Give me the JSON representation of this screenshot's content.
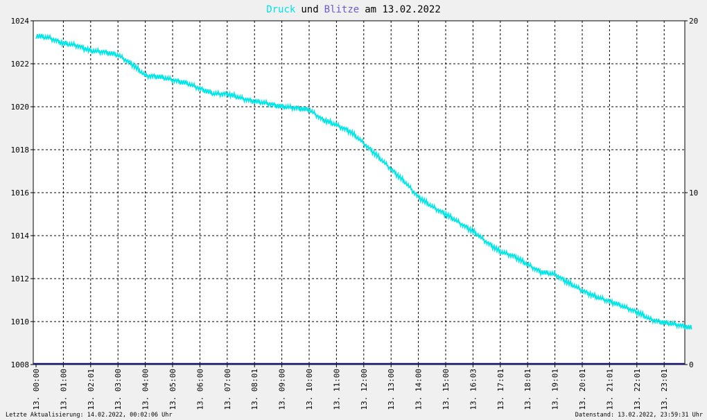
{
  "title": {
    "druck": "Druck",
    "und": "und",
    "blitze": "Blitze",
    "rest": "am 13.02.2022",
    "colors": {
      "druck": "#00e5e5",
      "blitze": "#6a5acd",
      "text": "#000000"
    }
  },
  "footer": {
    "left": "Letzte Aktualisierung: 14.02.2022, 00:02:06 Uhr",
    "right": "Datenstand: 13.02.2022, 23:59:31 Uhr"
  },
  "chart_data": {
    "type": "line",
    "title": "Druck und Blitze am 13.02.2022",
    "xlabel": "",
    "ylabel": "",
    "ylim": [
      1008,
      1024
    ],
    "y2lim": [
      0,
      20
    ],
    "y_ticks": [
      "1008",
      "1010",
      "1012",
      "1014",
      "1016",
      "1018",
      "1020",
      "1022",
      "1024"
    ],
    "y2_ticks": [
      "0",
      "10",
      "20"
    ],
    "x_ticks": [
      "13. 00:00",
      "13. 01:00",
      "13. 02:01",
      "13. 03:00",
      "13. 04:00",
      "13. 05:00",
      "13. 06:00",
      "13. 07:00",
      "13. 08:01",
      "13. 09:00",
      "13. 10:00",
      "13. 11:00",
      "13. 12:00",
      "13. 13:00",
      "13. 14:00",
      "13. 15:00",
      "13. 16:03",
      "13. 17:01",
      "13. 18:01",
      "13. 19:01",
      "13. 20:01",
      "13. 21:01",
      "13. 22:01",
      "13. 23:01"
    ],
    "grid": true,
    "series": [
      {
        "name": "Druck",
        "color": "#00e5e5",
        "axis": "left",
        "x_hours": [
          0,
          0.5,
          1,
          1.5,
          2,
          2.5,
          3,
          3.5,
          4,
          4.5,
          5,
          5.5,
          6,
          6.5,
          7,
          7.5,
          8,
          8.5,
          9,
          9.5,
          10,
          10.5,
          11,
          11.5,
          12,
          12.5,
          13,
          13.5,
          14,
          14.5,
          15,
          15.5,
          16,
          16.5,
          17,
          17.5,
          18,
          18.5,
          19,
          19.5,
          20,
          20.5,
          21,
          21.5,
          22,
          22.5,
          23,
          23.5,
          24
        ],
        "values": [
          1023.3,
          1023.2,
          1022.95,
          1022.85,
          1022.6,
          1022.55,
          1022.4,
          1022.0,
          1021.45,
          1021.4,
          1021.25,
          1021.1,
          1020.85,
          1020.6,
          1020.6,
          1020.4,
          1020.25,
          1020.15,
          1020.0,
          1019.95,
          1019.85,
          1019.4,
          1019.15,
          1018.85,
          1018.3,
          1017.7,
          1017.1,
          1016.5,
          1015.8,
          1015.35,
          1015.0,
          1014.6,
          1014.2,
          1013.7,
          1013.25,
          1013.05,
          1012.65,
          1012.3,
          1012.2,
          1011.8,
          1011.45,
          1011.15,
          1010.95,
          1010.7,
          1010.45,
          1010.1,
          1009.95,
          1009.85,
          1009.7
        ]
      },
      {
        "name": "Blitze",
        "color": "#191970",
        "axis": "right",
        "x_hours": [
          0,
          24
        ],
        "values": [
          0,
          0
        ]
      }
    ]
  }
}
